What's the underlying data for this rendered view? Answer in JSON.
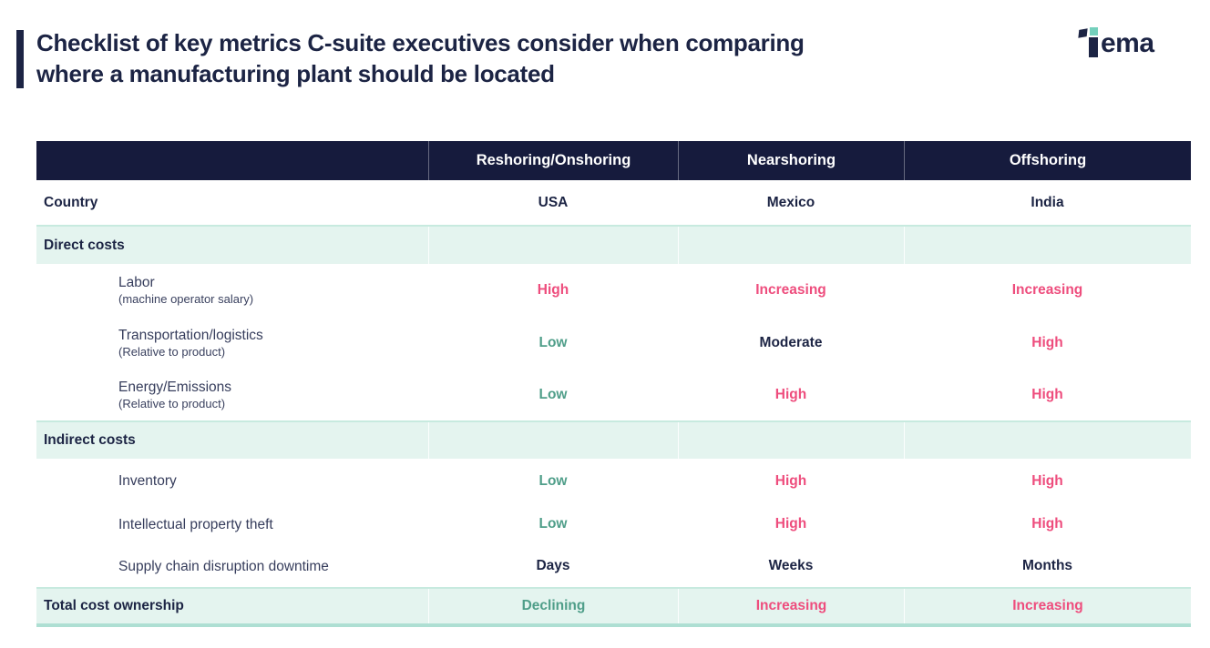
{
  "page": {
    "title_line1": "Checklist of key metrics C-suite executives consider when comparing",
    "title_line2": "where a manufacturing plant should be located"
  },
  "logo": {
    "name": "Tema",
    "wordmark_rest": "ema"
  },
  "colors": {
    "navy": "#161b3d",
    "title_navy": "#1c2444",
    "pink": "#ee4d7d",
    "green": "#4f9e89",
    "mint": "#e4f4ef",
    "teal_border": "#aedfd3",
    "logo_teal": "#74d0bc"
  },
  "chart_data": {
    "type": "table",
    "title": "Checklist of key metrics C-suite executives consider when comparing where a manufacturing plant should be located",
    "column_headers": [
      "Reshoring/Onshoring",
      "Nearshoring",
      "Offshoring"
    ],
    "rows": [
      {
        "type": "country",
        "label": "Country",
        "values": [
          {
            "text": "USA",
            "tone": "navy"
          },
          {
            "text": "Mexico",
            "tone": "navy"
          },
          {
            "text": "India",
            "tone": "navy"
          }
        ]
      },
      {
        "type": "section",
        "label": "Direct costs"
      },
      {
        "type": "metric",
        "label": "Labor",
        "sublabel": "(machine operator salary)",
        "values": [
          {
            "text": "High",
            "tone": "pink"
          },
          {
            "text": "Increasing",
            "tone": "pink"
          },
          {
            "text": "Increasing",
            "tone": "pink"
          }
        ]
      },
      {
        "type": "metric",
        "label": "Transportation/logistics",
        "sublabel": "(Relative to product)",
        "values": [
          {
            "text": "Low",
            "tone": "green"
          },
          {
            "text": "Moderate",
            "tone": "navy"
          },
          {
            "text": "High",
            "tone": "pink"
          }
        ]
      },
      {
        "type": "metric",
        "label": "Energy/Emissions",
        "sublabel": "(Relative to product)",
        "values": [
          {
            "text": "Low",
            "tone": "green"
          },
          {
            "text": "High",
            "tone": "pink"
          },
          {
            "text": "High",
            "tone": "pink"
          }
        ]
      },
      {
        "type": "section",
        "label": "Indirect costs"
      },
      {
        "type": "metric",
        "label": "Inventory",
        "values": [
          {
            "text": "Low",
            "tone": "green"
          },
          {
            "text": "High",
            "tone": "pink"
          },
          {
            "text": "High",
            "tone": "pink"
          }
        ]
      },
      {
        "type": "metric",
        "label": "Intellectual property theft",
        "values": [
          {
            "text": "Low",
            "tone": "green"
          },
          {
            "text": "High",
            "tone": "pink"
          },
          {
            "text": "High",
            "tone": "pink"
          }
        ]
      },
      {
        "type": "metric",
        "label": "Supply chain disruption downtime",
        "values": [
          {
            "text": "Days",
            "tone": "navy"
          },
          {
            "text": "Weeks",
            "tone": "navy"
          },
          {
            "text": "Months",
            "tone": "navy"
          }
        ]
      },
      {
        "type": "total",
        "label": "Total cost ownership",
        "values": [
          {
            "text": "Declining",
            "tone": "green"
          },
          {
            "text": "Increasing",
            "tone": "pink"
          },
          {
            "text": "Increasing",
            "tone": "pink"
          }
        ]
      }
    ]
  }
}
